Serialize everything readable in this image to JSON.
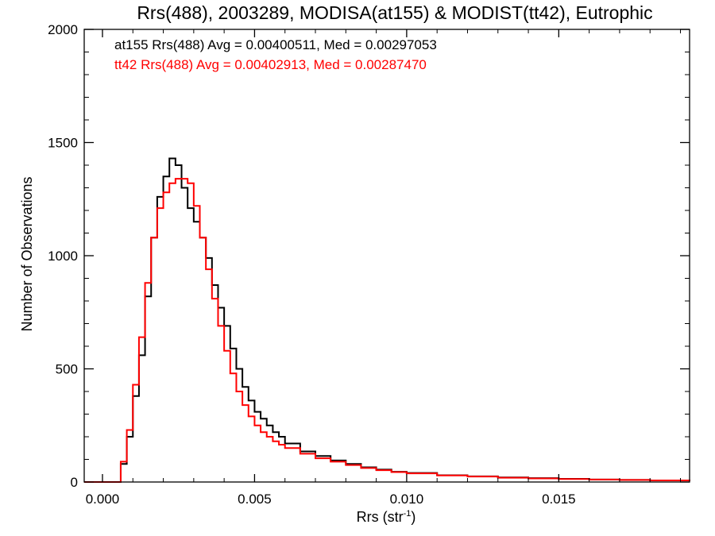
{
  "chart_data": {
    "type": "line",
    "title": "Rrs(488), 2003289, MODISA(at155) & MODIST(tt42), Eutrophic",
    "xlabel_main": "Rrs (str",
    "xlabel_sup": "-1",
    "xlabel_close": ")",
    "ylabel": "Number of Observations",
    "xlim": [
      -0.0006,
      0.0193
    ],
    "ylim": [
      0,
      2000
    ],
    "x_ticks": [
      0.0,
      0.005,
      0.01,
      0.015
    ],
    "x_tick_labels": [
      "0.000",
      "0.005",
      "0.010",
      "0.015"
    ],
    "y_ticks": [
      0,
      500,
      1000,
      1500,
      2000
    ],
    "y_tick_labels": [
      "0",
      "500",
      "1000",
      "1500",
      "2000"
    ],
    "grid": false,
    "legend_position": "top-left",
    "series": [
      {
        "name": "at155",
        "color": "#000000",
        "annotation": "at155 Rrs(488) Avg = 0.00400511, Med = 0.00297053",
        "points": [
          [
            -0.0006,
            0
          ],
          [
            0.0004,
            0
          ],
          [
            0.0006,
            80
          ],
          [
            0.0008,
            200
          ],
          [
            0.001,
            380
          ],
          [
            0.0012,
            560
          ],
          [
            0.0014,
            820
          ],
          [
            0.0016,
            1080
          ],
          [
            0.0018,
            1260
          ],
          [
            0.002,
            1350
          ],
          [
            0.0022,
            1430
          ],
          [
            0.0024,
            1400
          ],
          [
            0.0026,
            1300
          ],
          [
            0.0028,
            1210
          ],
          [
            0.003,
            1150
          ],
          [
            0.0032,
            1080
          ],
          [
            0.0034,
            990
          ],
          [
            0.0036,
            870
          ],
          [
            0.0038,
            770
          ],
          [
            0.004,
            690
          ],
          [
            0.0042,
            590
          ],
          [
            0.0044,
            500
          ],
          [
            0.0046,
            420
          ],
          [
            0.0048,
            360
          ],
          [
            0.005,
            310
          ],
          [
            0.0052,
            280
          ],
          [
            0.0054,
            250
          ],
          [
            0.0056,
            220
          ],
          [
            0.0058,
            200
          ],
          [
            0.006,
            170
          ],
          [
            0.0065,
            135
          ],
          [
            0.007,
            115
          ],
          [
            0.0075,
            95
          ],
          [
            0.008,
            80
          ],
          [
            0.0085,
            65
          ],
          [
            0.009,
            55
          ],
          [
            0.0095,
            45
          ],
          [
            0.01,
            40
          ],
          [
            0.011,
            30
          ],
          [
            0.012,
            25
          ],
          [
            0.013,
            20
          ],
          [
            0.014,
            17
          ],
          [
            0.015,
            14
          ],
          [
            0.016,
            11
          ],
          [
            0.017,
            9
          ],
          [
            0.018,
            7
          ],
          [
            0.0193,
            5
          ]
        ]
      },
      {
        "name": "tt42",
        "color": "#ff0000",
        "annotation": "tt42 Rrs(488) Avg = 0.00402913, Med = 0.00287470",
        "points": [
          [
            -0.0006,
            0
          ],
          [
            0.0004,
            0
          ],
          [
            0.0006,
            90
          ],
          [
            0.0008,
            230
          ],
          [
            0.001,
            430
          ],
          [
            0.0012,
            640
          ],
          [
            0.0014,
            880
          ],
          [
            0.0016,
            1080
          ],
          [
            0.0018,
            1210
          ],
          [
            0.002,
            1280
          ],
          [
            0.0022,
            1320
          ],
          [
            0.0024,
            1340
          ],
          [
            0.0026,
            1340
          ],
          [
            0.0028,
            1320
          ],
          [
            0.003,
            1220
          ],
          [
            0.0032,
            1080
          ],
          [
            0.0034,
            940
          ],
          [
            0.0036,
            810
          ],
          [
            0.0038,
            690
          ],
          [
            0.004,
            580
          ],
          [
            0.0042,
            480
          ],
          [
            0.0044,
            400
          ],
          [
            0.0046,
            340
          ],
          [
            0.0048,
            290
          ],
          [
            0.005,
            250
          ],
          [
            0.0052,
            220
          ],
          [
            0.0054,
            200
          ],
          [
            0.0056,
            180
          ],
          [
            0.0058,
            165
          ],
          [
            0.006,
            150
          ],
          [
            0.0065,
            125
          ],
          [
            0.007,
            105
          ],
          [
            0.0075,
            90
          ],
          [
            0.008,
            75
          ],
          [
            0.0085,
            62
          ],
          [
            0.009,
            52
          ],
          [
            0.0095,
            44
          ],
          [
            0.01,
            38
          ],
          [
            0.011,
            29
          ],
          [
            0.012,
            24
          ],
          [
            0.013,
            19
          ],
          [
            0.014,
            16
          ],
          [
            0.015,
            13
          ],
          [
            0.016,
            11
          ],
          [
            0.017,
            9
          ],
          [
            0.018,
            7
          ],
          [
            0.0193,
            5
          ]
        ]
      }
    ]
  }
}
